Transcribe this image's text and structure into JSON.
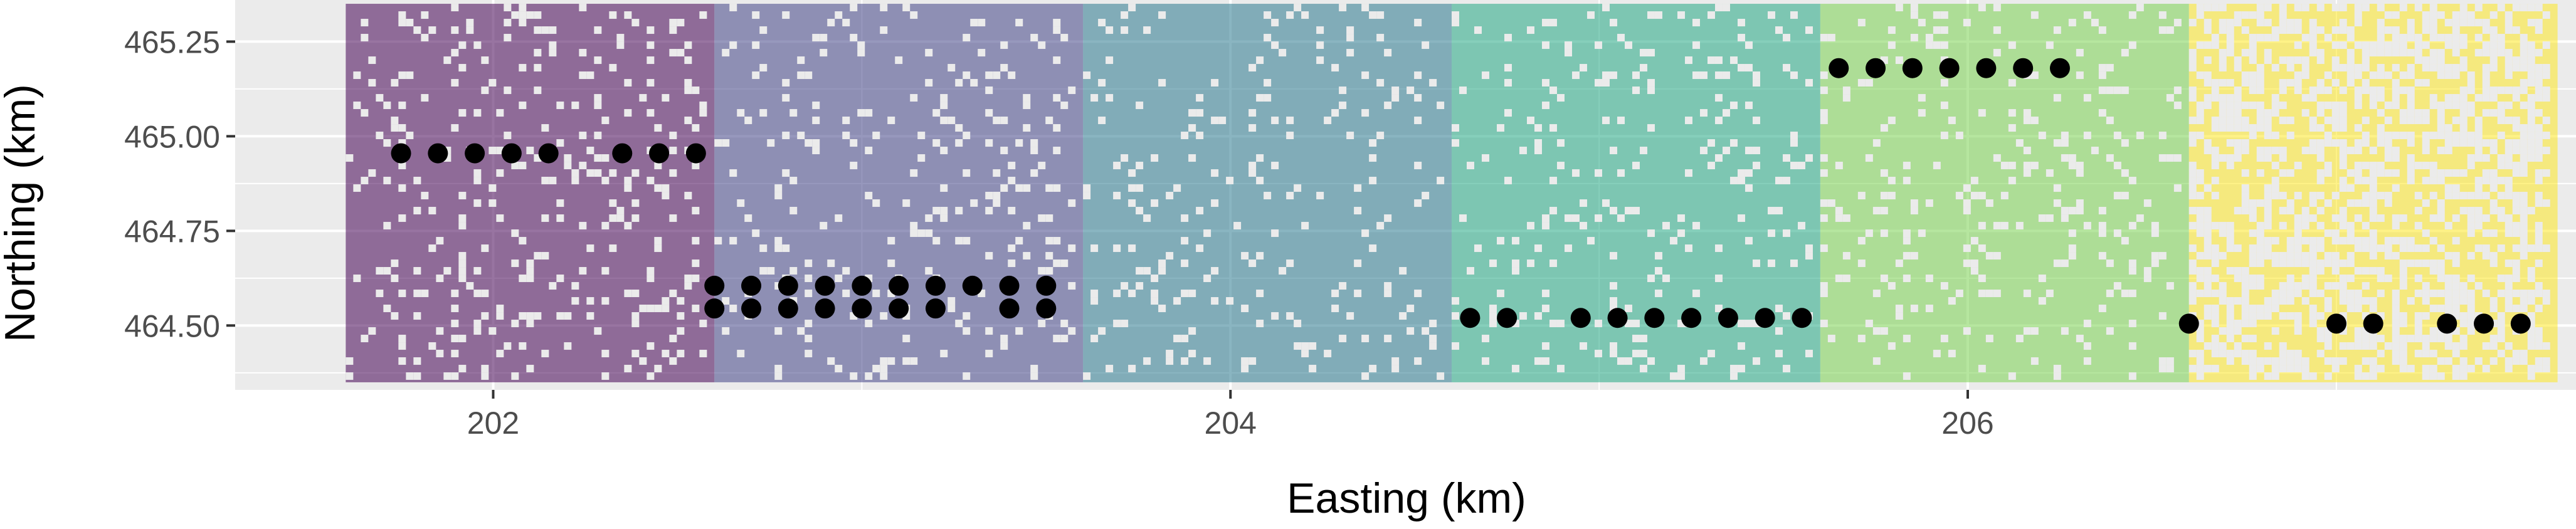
{
  "chart_data": {
    "type": "scatter",
    "title": "",
    "xlabel": "Easting (km)",
    "ylabel": "Northing (km)",
    "xlim": [
      201.3,
      207.65
    ],
    "ylim": [
      464.33,
      465.36
    ],
    "x_ticks": [
      202,
      204,
      206
    ],
    "x_tick_labels": [
      "202",
      "204",
      "206"
    ],
    "y_ticks": [
      464.5,
      464.75,
      465.0,
      465.25
    ],
    "y_tick_labels": [
      "464.50",
      "464.75",
      "465.00",
      "465.25"
    ],
    "grid": true,
    "legend": "none",
    "background_raster": {
      "x_range": [
        201.6,
        207.6
      ],
      "y_range": [
        464.35,
        465.35
      ],
      "note_colors": "six vertical block bands, viridis palette, semi-transparent, with scattered pixel gaps",
      "bands": [
        {
          "x_start": 201.6,
          "x_end": 202.6,
          "color": "#440154"
        },
        {
          "x_start": 202.6,
          "x_end": 203.6,
          "color": "#414487"
        },
        {
          "x_start": 203.6,
          "x_end": 204.6,
          "color": "#2A788E"
        },
        {
          "x_start": 204.6,
          "x_end": 205.6,
          "color": "#22A884"
        },
        {
          "x_start": 205.6,
          "x_end": 206.6,
          "color": "#7AD151"
        },
        {
          "x_start": 206.6,
          "x_end": 207.6,
          "color": "#FDE725"
        }
      ]
    },
    "series": [
      {
        "color": "#000000",
        "points": [
          {
            "x": 201.75,
            "y": 464.955
          },
          {
            "x": 201.85,
            "y": 464.955
          },
          {
            "x": 201.95,
            "y": 464.955
          },
          {
            "x": 202.05,
            "y": 464.955
          },
          {
            "x": 202.15,
            "y": 464.955
          },
          {
            "x": 202.35,
            "y": 464.955
          },
          {
            "x": 202.45,
            "y": 464.955
          },
          {
            "x": 202.55,
            "y": 464.955
          },
          {
            "x": 202.6,
            "y": 464.605
          },
          {
            "x": 202.7,
            "y": 464.605
          },
          {
            "x": 202.8,
            "y": 464.605
          },
          {
            "x": 202.9,
            "y": 464.605
          },
          {
            "x": 203.0,
            "y": 464.605
          },
          {
            "x": 203.1,
            "y": 464.605
          },
          {
            "x": 203.2,
            "y": 464.605
          },
          {
            "x": 203.3,
            "y": 464.605
          },
          {
            "x": 203.4,
            "y": 464.605
          },
          {
            "x": 203.5,
            "y": 464.605
          },
          {
            "x": 202.6,
            "y": 464.545
          },
          {
            "x": 202.7,
            "y": 464.545
          },
          {
            "x": 202.8,
            "y": 464.545
          },
          {
            "x": 202.9,
            "y": 464.545
          },
          {
            "x": 203.0,
            "y": 464.545
          },
          {
            "x": 203.1,
            "y": 464.545
          },
          {
            "x": 203.2,
            "y": 464.545
          },
          {
            "x": 203.4,
            "y": 464.545
          },
          {
            "x": 203.5,
            "y": 464.545
          },
          {
            "x": 204.65,
            "y": 464.52
          },
          {
            "x": 204.75,
            "y": 464.52
          },
          {
            "x": 204.95,
            "y": 464.52
          },
          {
            "x": 205.05,
            "y": 464.52
          },
          {
            "x": 205.15,
            "y": 464.52
          },
          {
            "x": 205.25,
            "y": 464.52
          },
          {
            "x": 205.35,
            "y": 464.52
          },
          {
            "x": 205.45,
            "y": 464.52
          },
          {
            "x": 205.55,
            "y": 464.52
          },
          {
            "x": 205.65,
            "y": 465.18
          },
          {
            "x": 205.75,
            "y": 465.18
          },
          {
            "x": 205.85,
            "y": 465.18
          },
          {
            "x": 205.95,
            "y": 465.18
          },
          {
            "x": 206.05,
            "y": 465.18
          },
          {
            "x": 206.15,
            "y": 465.18
          },
          {
            "x": 206.25,
            "y": 465.18
          },
          {
            "x": 206.6,
            "y": 464.505
          },
          {
            "x": 207.0,
            "y": 464.505
          },
          {
            "x": 207.1,
            "y": 464.505
          },
          {
            "x": 207.3,
            "y": 464.505
          },
          {
            "x": 207.4,
            "y": 464.505
          },
          {
            "x": 207.5,
            "y": 464.505
          }
        ]
      }
    ]
  }
}
